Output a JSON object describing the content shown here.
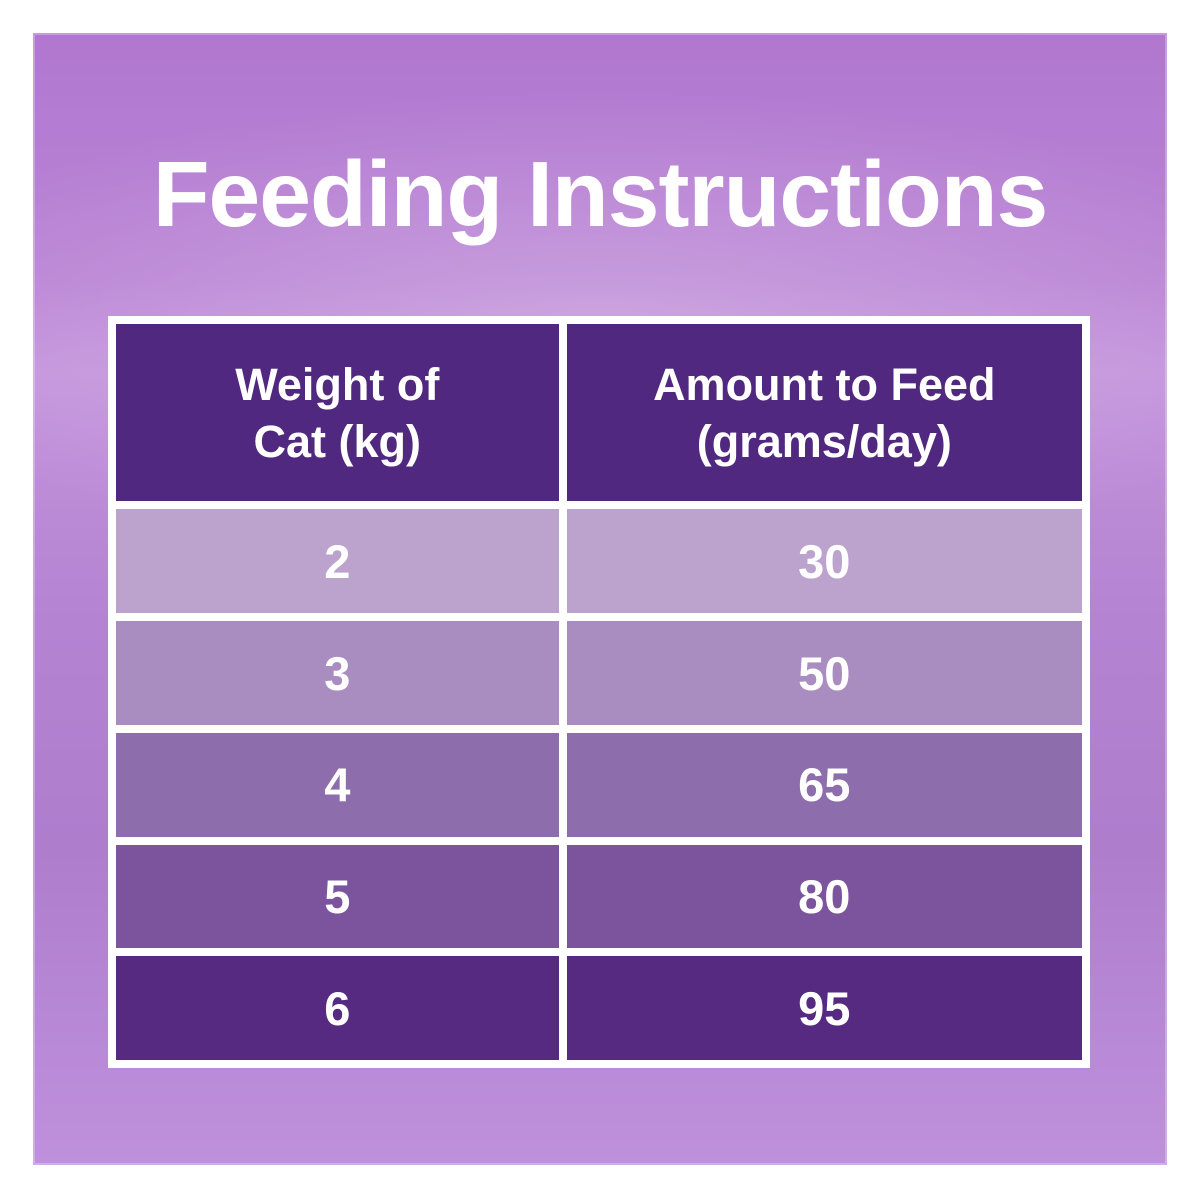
{
  "title": "Feeding Instructions",
  "table": {
    "columns": [
      "Weight of\nCat (kg)",
      "Amount to Feed\n(grams/day)"
    ],
    "rows": [
      {
        "weight": "2",
        "amount": "30"
      },
      {
        "weight": "3",
        "amount": "50"
      },
      {
        "weight": "4",
        "amount": "65"
      },
      {
        "weight": "5",
        "amount": "80"
      },
      {
        "weight": "6",
        "amount": "95"
      }
    ]
  },
  "colors": {
    "page_background": "#ffffff",
    "panel_purple": "#b583d3",
    "header_bg": "#50287f",
    "row_bgs": [
      "#bba3ce",
      "#a98cc0",
      "#8d6dab",
      "#7b549d",
      "#572a82"
    ],
    "table_border": "#ffffff",
    "text": "#ffffff"
  }
}
